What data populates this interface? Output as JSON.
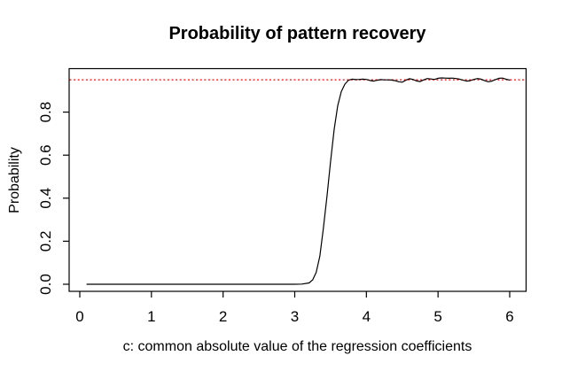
{
  "figure": {
    "background": "#ffffff",
    "line_color": "#000000",
    "axis_color": "#000000"
  },
  "chart_data": {
    "type": "line",
    "title": "Probability of pattern recovery",
    "xlabel": "c: common absolute value of the regression coefficients",
    "ylabel": "Probability",
    "x_ticks": [
      0,
      1,
      2,
      3,
      4,
      5,
      6
    ],
    "y_tick_labels": [
      "0.0",
      "0.2",
      "0.4",
      "0.6",
      "0.8"
    ],
    "xlim": [
      -0.15,
      6.22
    ],
    "ylim": [
      -0.03,
      1.0
    ],
    "grid": false,
    "legend": null,
    "reference_line": {
      "y": 0.95,
      "color": "#ff0000",
      "style": "dotted"
    },
    "series": [
      {
        "name": "probability-of-pattern-recovery",
        "color": "#000000",
        "points": [
          [
            0.1,
            0
          ],
          [
            0.4,
            0
          ],
          [
            0.8,
            0
          ],
          [
            1.2,
            0
          ],
          [
            1.6,
            0
          ],
          [
            2.0,
            0
          ],
          [
            2.4,
            0
          ],
          [
            2.8,
            0
          ],
          [
            3.0,
            0
          ],
          [
            3.1,
            0.001
          ],
          [
            3.2,
            0.006
          ],
          [
            3.25,
            0.02
          ],
          [
            3.3,
            0.055
          ],
          [
            3.35,
            0.13
          ],
          [
            3.4,
            0.26
          ],
          [
            3.45,
            0.41
          ],
          [
            3.5,
            0.57
          ],
          [
            3.55,
            0.72
          ],
          [
            3.6,
            0.83
          ],
          [
            3.65,
            0.895
          ],
          [
            3.7,
            0.93
          ],
          [
            3.75,
            0.948
          ],
          [
            3.8,
            0.953
          ],
          [
            3.85,
            0.951
          ],
          [
            3.9,
            0.952
          ],
          [
            3.95,
            0.953
          ],
          [
            4.0,
            0.952
          ],
          [
            4.05,
            0.947
          ],
          [
            4.1,
            0.944
          ],
          [
            4.15,
            0.948
          ],
          [
            4.2,
            0.951
          ],
          [
            4.25,
            0.95
          ],
          [
            4.3,
            0.95
          ],
          [
            4.35,
            0.949
          ],
          [
            4.4,
            0.946
          ],
          [
            4.45,
            0.941
          ],
          [
            4.5,
            0.939
          ],
          [
            4.55,
            0.948
          ],
          [
            4.6,
            0.955
          ],
          [
            4.65,
            0.952
          ],
          [
            4.7,
            0.945
          ],
          [
            4.75,
            0.942
          ],
          [
            4.8,
            0.95
          ],
          [
            4.85,
            0.956
          ],
          [
            4.9,
            0.954
          ],
          [
            4.95,
            0.952
          ],
          [
            5.0,
            0.957
          ],
          [
            5.05,
            0.959
          ],
          [
            5.1,
            0.958
          ],
          [
            5.15,
            0.957
          ],
          [
            5.2,
            0.958
          ],
          [
            5.25,
            0.956
          ],
          [
            5.3,
            0.953
          ],
          [
            5.35,
            0.948
          ],
          [
            5.4,
            0.944
          ],
          [
            5.45,
            0.946
          ],
          [
            5.5,
            0.952
          ],
          [
            5.55,
            0.956
          ],
          [
            5.6,
            0.953
          ],
          [
            5.65,
            0.946
          ],
          [
            5.7,
            0.941
          ],
          [
            5.75,
            0.944
          ],
          [
            5.8,
            0.951
          ],
          [
            5.85,
            0.957
          ],
          [
            5.9,
            0.958
          ],
          [
            5.95,
            0.953
          ],
          [
            6.0,
            0.949
          ]
        ]
      }
    ]
  }
}
